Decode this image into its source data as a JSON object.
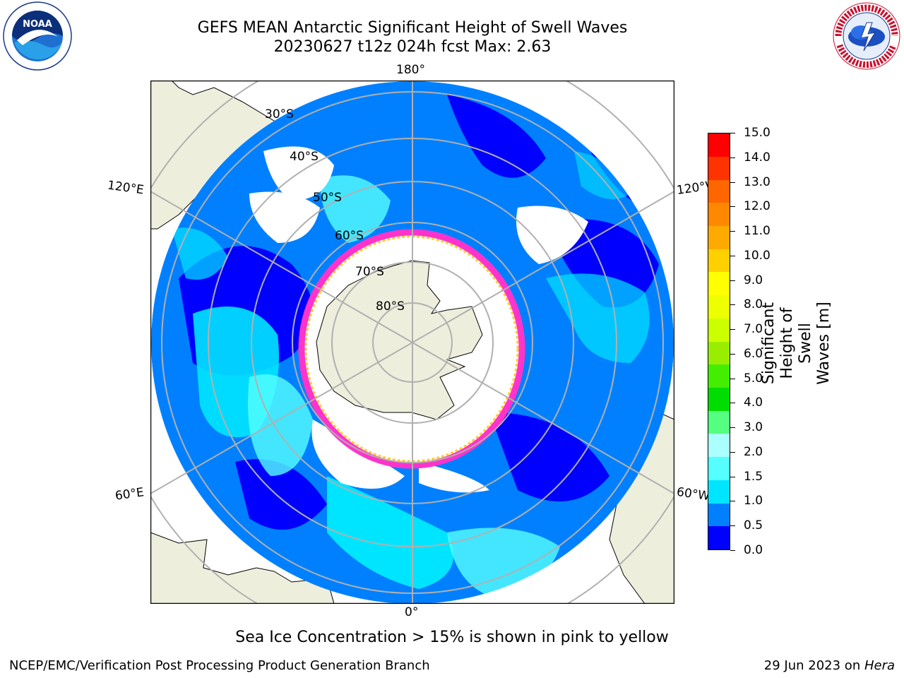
{
  "title": {
    "line1": "GEFS MEAN Antarctic Significant Height of Swell Waves",
    "line2": "20230627 t12z 024h fcst   Max: 2.63"
  },
  "longitude_labels": {
    "top": "180°",
    "bottom": "0°",
    "upper_left": "120°E",
    "upper_right": "120°W",
    "lower_left": "60°E",
    "lower_right": "60°W"
  },
  "latitude_labels": [
    "30°S",
    "40°S",
    "50°S",
    "60°S",
    "70°S",
    "80°S"
  ],
  "colorbar": {
    "label_line1": "Significant Height of Swell",
    "label_line2": "Waves [m]",
    "ticks": [
      "15.0",
      "14.0",
      "13.0",
      "12.0",
      "11.0",
      "10.0",
      "9.0",
      "8.0",
      "7.0",
      "6.0",
      "5.0",
      "4.0",
      "3.0",
      "2.0",
      "1.5",
      "1.0",
      "0.5",
      "0.0"
    ],
    "colors": [
      "#0000ff",
      "#0080ff",
      "#00e5ff",
      "#55ffff",
      "#aaffff",
      "#55ff80",
      "#00dd00",
      "#44ee00",
      "#99ee00",
      "#ccff00",
      "#eeff00",
      "#ffff00",
      "#ffd000",
      "#ffaa00",
      "#ff8800",
      "#ff6600",
      "#ff3300",
      "#ff0000"
    ]
  },
  "caption": "Sea Ice Concentration > 15% is shown in pink to yellow",
  "footer": {
    "left": "NCEP/EMC/Verification Post Processing Product Generation Branch",
    "right_prefix": "29 Jun 2023 on ",
    "right_machine": "Hera"
  },
  "logos": {
    "left": "noaa-logo",
    "right": "national-weather-service-logo"
  }
}
